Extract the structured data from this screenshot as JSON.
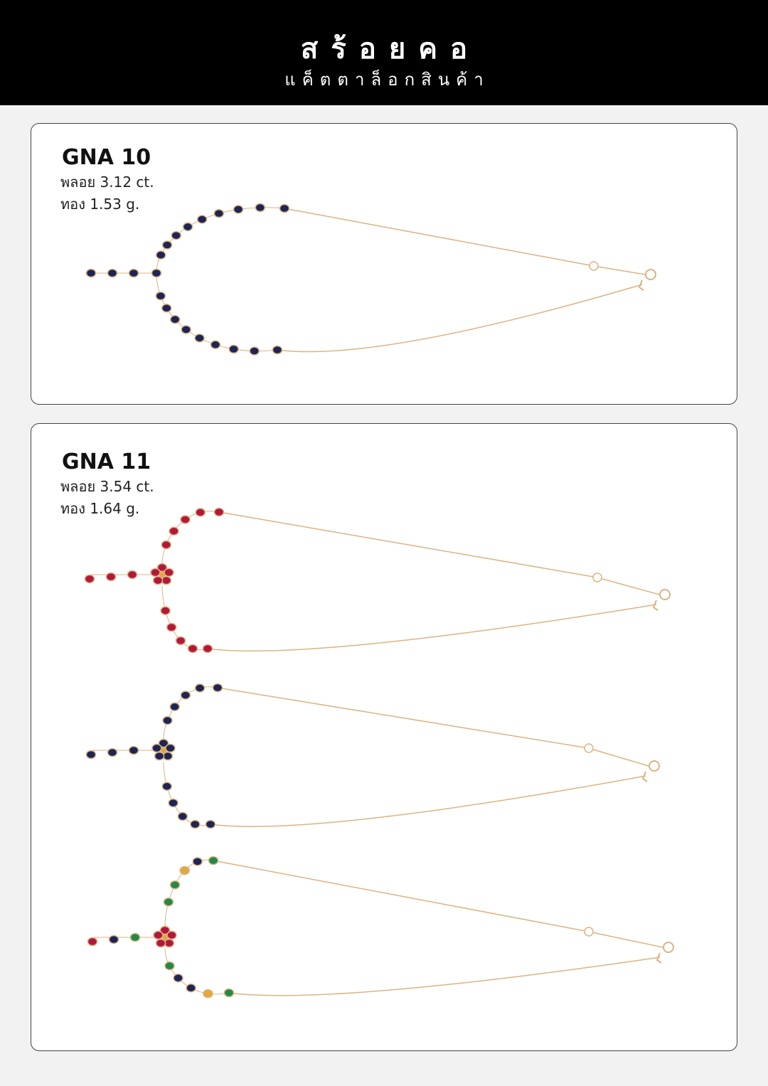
{
  "header": {
    "title": "สร้อยคอ",
    "subtitle": "แค็ตตาล็อกสินค้า"
  },
  "products": [
    {
      "code": "GNA 10",
      "gem": "พลอย 3.12 ct.",
      "gold": "ทอง 1.53 g."
    },
    {
      "code": "GNA 11",
      "gem": "พลอย 3.54 ct.",
      "gold": "ทอง 1.64 g."
    }
  ]
}
